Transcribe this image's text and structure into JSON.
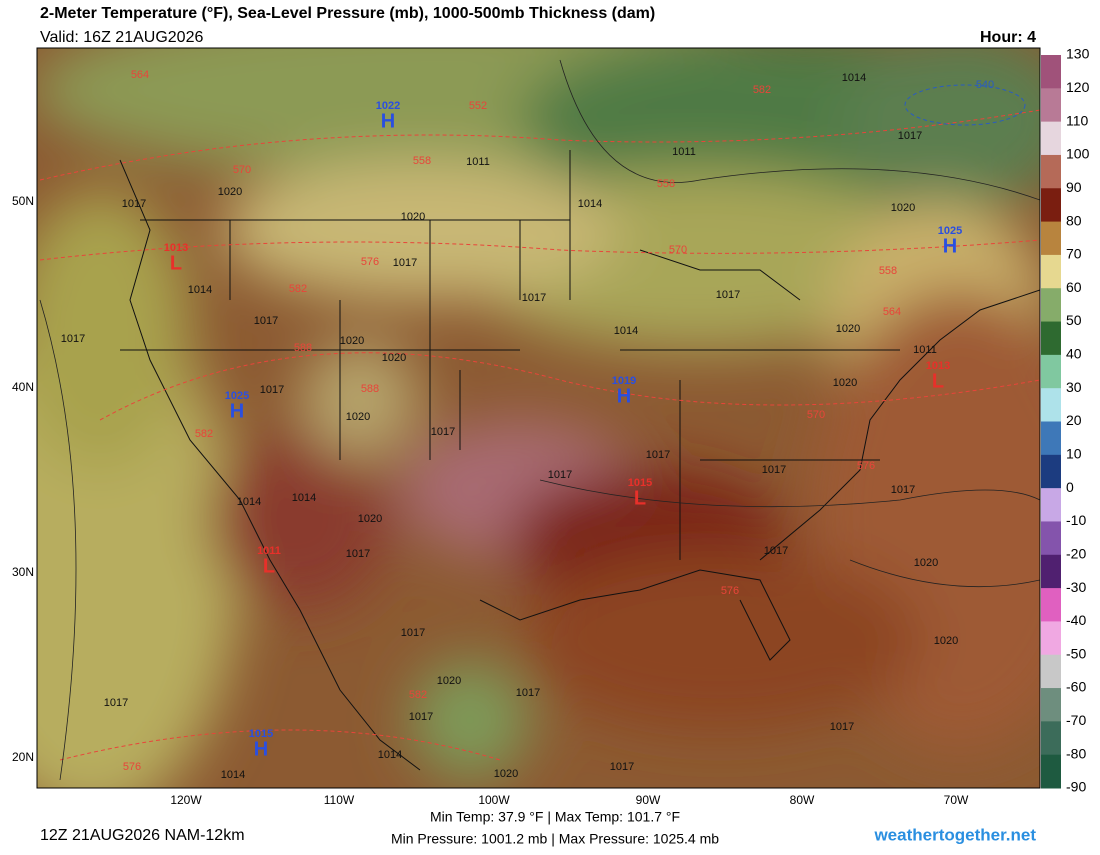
{
  "header": {
    "title": "2-Meter Temperature (°F), Sea-Level Pressure (mb), 1000-500mb Thickness (dam)",
    "valid": "Valid: 16Z 21AUG2026",
    "hour": "Hour: 4"
  },
  "colorbar": {
    "ticks": [
      130,
      120,
      110,
      100,
      90,
      80,
      70,
      60,
      50,
      40,
      30,
      20,
      10,
      0,
      -10,
      -20,
      -30,
      -40,
      -50,
      -60,
      -70,
      -80,
      -90
    ]
  },
  "map": {
    "lat_labels": [
      "50N",
      "40N",
      "30N",
      "20N"
    ],
    "lon_labels": [
      "120W",
      "110W",
      "100W",
      "90W",
      "80W",
      "70W"
    ],
    "pressure_centers": [
      {
        "letter": "H",
        "value": 1022
      },
      {
        "letter": "H",
        "value": 1025
      },
      {
        "letter": "H",
        "value": 1019
      },
      {
        "letter": "H",
        "value": 1015
      },
      {
        "letter": "H",
        "value": 1025
      },
      {
        "letter": "L",
        "value": 1013
      },
      {
        "letter": "L",
        "value": 1011
      },
      {
        "letter": "L",
        "value": 1015
      },
      {
        "letter": "L",
        "value": 1013
      }
    ],
    "isobar_labels": [
      1017,
      1020,
      1014,
      1017,
      1020,
      1020,
      1017,
      1020,
      1017,
      1017,
      1020,
      1011,
      1014,
      1011,
      1014,
      1017,
      1020,
      1017,
      1014,
      1017,
      1020,
      1020,
      1017,
      1017,
      1017,
      1017,
      1014,
      1014,
      1020,
      1017,
      1017,
      1020,
      1020,
      1017,
      1020,
      1017,
      1017,
      1014,
      1020,
      1017,
      1014,
      1017,
      1017,
      1017,
      1011
    ],
    "thickness_labels": [
      564,
      552,
      558,
      570,
      558,
      570,
      576,
      582,
      588,
      588,
      582,
      570,
      576,
      564,
      558,
      582,
      576,
      582,
      576,
      540
    ]
  },
  "footer": {
    "run": "12Z 21AUG2026 NAM-12km",
    "temp_range": "Min Temp:  37.9 °F | Max Temp: 101.7 °F",
    "pressure_range": "Min Pressure: 1001.2 mb | Max Pressure: 1025.4 mb",
    "site": "weathertogether.net"
  }
}
